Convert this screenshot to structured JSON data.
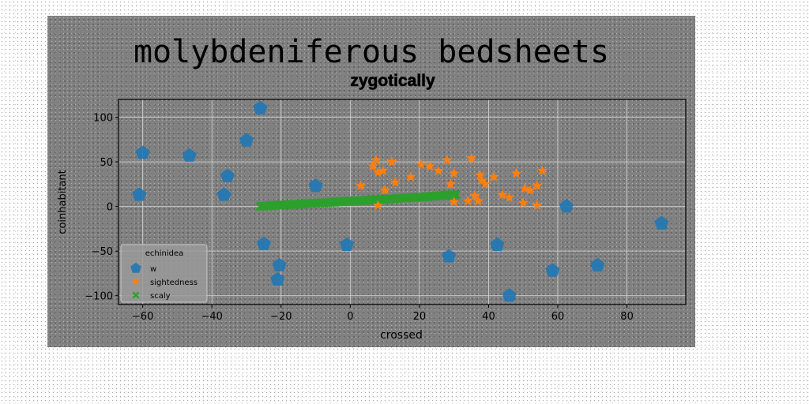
{
  "figure": {
    "suptitle": "molybdeniferous bedsheets"
  },
  "chart_data": {
    "type": "scatter",
    "title": "zygotically",
    "xlabel": "crossed",
    "ylabel": "coinhabitant",
    "xlim": [
      -67,
      97
    ],
    "ylim": [
      -110,
      120
    ],
    "xticks": [
      -60,
      -40,
      -20,
      0,
      20,
      40,
      60,
      80
    ],
    "yticks": [
      -100,
      -50,
      0,
      50,
      100
    ],
    "grid": true,
    "legend": {
      "title": "echinidea",
      "location": "lower-left"
    },
    "series": [
      {
        "name": "w",
        "marker": "pentagon",
        "color": "#1f77b4",
        "points": [
          [
            -26,
            110
          ],
          [
            -30,
            74
          ],
          [
            -60,
            60
          ],
          [
            -46.5,
            57
          ],
          [
            -35.5,
            34
          ],
          [
            -36.5,
            13
          ],
          [
            -61,
            13
          ],
          [
            -10,
            23
          ],
          [
            -25,
            -42
          ],
          [
            -20.5,
            -66
          ],
          [
            -21,
            -82
          ],
          [
            -1,
            -43
          ],
          [
            28.5,
            -56
          ],
          [
            42.5,
            -43
          ],
          [
            46,
            -100
          ],
          [
            58.5,
            -72
          ],
          [
            62.5,
            0
          ],
          [
            71.5,
            -66
          ],
          [
            90,
            -19
          ]
        ]
      },
      {
        "name": "sightedness",
        "marker": "star",
        "color": "#ff7f0e",
        "points": [
          [
            3,
            23
          ],
          [
            6.5,
            45
          ],
          [
            7.5,
            52
          ],
          [
            9.5,
            40
          ],
          [
            12,
            50
          ],
          [
            13,
            27
          ],
          [
            8,
            38
          ],
          [
            10,
            18
          ],
          [
            20.5,
            47
          ],
          [
            23,
            45
          ],
          [
            25.5,
            40
          ],
          [
            28,
            52
          ],
          [
            30,
            37
          ],
          [
            35,
            54
          ],
          [
            37.5,
            35
          ],
          [
            38,
            29
          ],
          [
            39,
            25
          ],
          [
            36,
            12
          ],
          [
            41.5,
            33
          ],
          [
            44,
            13
          ],
          [
            46,
            10
          ],
          [
            48,
            37
          ],
          [
            50.5,
            20
          ],
          [
            52,
            18
          ],
          [
            55.5,
            40
          ],
          [
            54,
            23
          ],
          [
            29,
            25
          ],
          [
            30,
            5
          ],
          [
            37,
            6
          ],
          [
            50,
            4
          ],
          [
            54,
            1
          ],
          [
            17.5,
            33
          ],
          [
            8,
            1
          ],
          [
            34,
            6
          ]
        ]
      },
      {
        "name": "scaly",
        "marker": "X",
        "color": "#2ca02c",
        "points": [
          [
            -26,
            0
          ],
          [
            -23,
            1
          ],
          [
            -20,
            1.5
          ],
          [
            -17,
            2
          ],
          [
            -14,
            3
          ],
          [
            -11,
            3.5
          ],
          [
            -8,
            4
          ],
          [
            -5,
            5
          ],
          [
            -2,
            5.5
          ],
          [
            1,
            6
          ],
          [
            4,
            7
          ],
          [
            7,
            7.5
          ],
          [
            10,
            8
          ],
          [
            13,
            9
          ],
          [
            16,
            9.5
          ],
          [
            19,
            10
          ],
          [
            22,
            11
          ],
          [
            25,
            12
          ],
          [
            27,
            12.5
          ]
        ]
      }
    ]
  }
}
